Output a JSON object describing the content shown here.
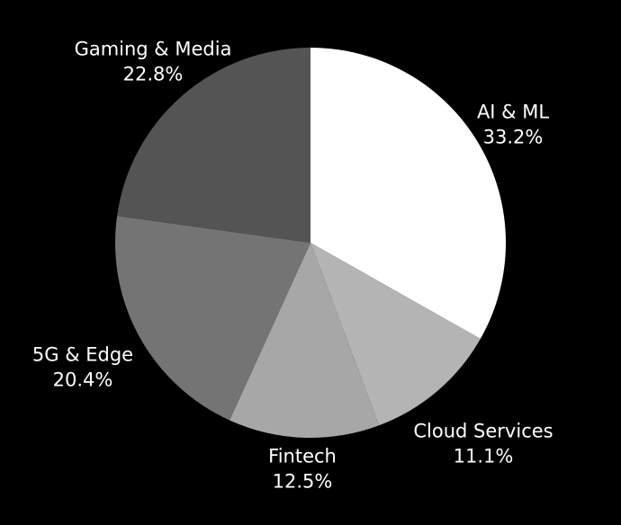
{
  "chart_data": {
    "type": "pie",
    "background": "#000000",
    "label_color": "#ffffff",
    "start_angle": "top",
    "direction": "clockwise",
    "legend": false,
    "slices": [
      {
        "label": "AI & ML",
        "value": 33.2,
        "pct_text": "33.2%",
        "color": "#ffffff"
      },
      {
        "label": "Cloud Services",
        "value": 11.1,
        "pct_text": "11.1%",
        "color": "#b4b4b4"
      },
      {
        "label": "Fintech",
        "value": 12.5,
        "pct_text": "12.5%",
        "color": "#a7a7a7"
      },
      {
        "label": "5G & Edge",
        "value": 20.4,
        "pct_text": "20.4%",
        "color": "#747474"
      },
      {
        "label": "Gaming & Media",
        "value": 22.8,
        "pct_text": "22.8%",
        "color": "#545454"
      }
    ]
  }
}
